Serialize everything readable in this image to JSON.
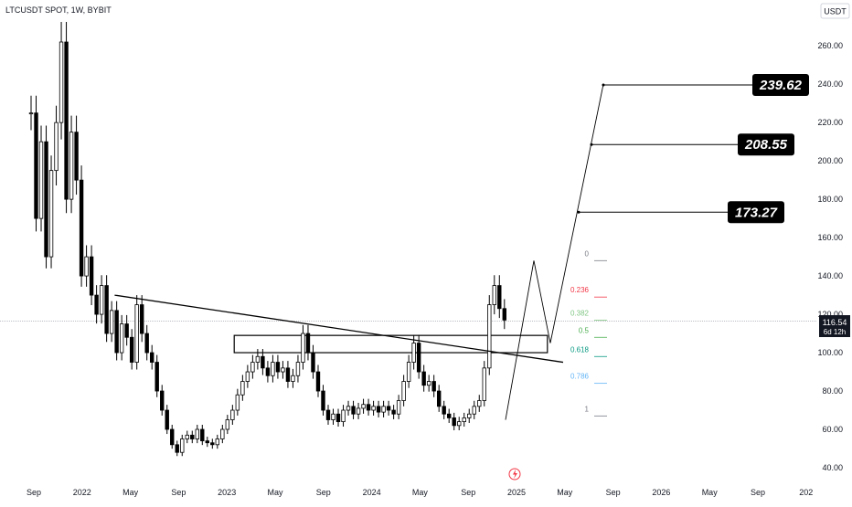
{
  "header": {
    "symbol_title": "LTCUSDT SPOT, 1W, BYBIT",
    "currency_button": "USDT"
  },
  "price_tag": {
    "price": "116.54",
    "countdown": "6d 12h"
  },
  "colors": {
    "bull": "#ffffff",
    "bear": "#000000",
    "wick": "#000000",
    "trendline": "#000000",
    "fib_0": "#787b86",
    "fib_0236": "#f23645",
    "fib_0382": "#81c784",
    "fib_05": "#4caf50",
    "fib_0618": "#089981",
    "fib_0786": "#64b5f6",
    "fib_1": "#787b86",
    "target_box": "#000000",
    "last_price_line": "#9598a1"
  },
  "chart_data": {
    "type": "candlestick",
    "title": "LTCUSDT SPOT, 1W, BYBIT",
    "y_axis": {
      "unit": "USDT",
      "ticks": [
        "40.00",
        "60.00",
        "80.00",
        "100.00",
        "120.00",
        "140.00",
        "160.00",
        "180.00",
        "200.00",
        "220.00",
        "240.00",
        "260.00"
      ],
      "ylim": [
        40,
        262
      ]
    },
    "x_axis": {
      "ticks": [
        "Sep",
        "2022",
        "May",
        "Sep",
        "2023",
        "May",
        "Sep",
        "2024",
        "May",
        "Sep",
        "2025",
        "May",
        "Sep",
        "2026",
        "May",
        "Sep",
        "202"
      ],
      "tick_dates": [
        "2021-09",
        "2022-01",
        "2022-05",
        "2022-09",
        "2023-01",
        "2023-05",
        "2023-09",
        "2024-01",
        "2024-05",
        "2024-09",
        "2025-01",
        "2025-05",
        "2025-09",
        "2026-01",
        "2026-05",
        "2026-09",
        "2027-01"
      ]
    },
    "last_price": 116.54,
    "candle_path_close_estimates": [
      [
        0,
        225
      ],
      [
        2,
        170
      ],
      [
        4,
        210
      ],
      [
        6,
        150
      ],
      [
        8,
        195
      ],
      [
        10,
        220
      ],
      [
        12,
        262
      ],
      [
        14,
        180
      ],
      [
        16,
        215
      ],
      [
        18,
        190
      ],
      [
        20,
        140
      ],
      [
        22,
        150
      ],
      [
        24,
        130
      ],
      [
        26,
        120
      ],
      [
        28,
        135
      ],
      [
        30,
        110
      ],
      [
        32,
        122
      ],
      [
        34,
        100
      ],
      [
        36,
        115
      ],
      [
        38,
        108
      ],
      [
        40,
        95
      ],
      [
        42,
        125
      ],
      [
        44,
        110
      ],
      [
        46,
        100
      ],
      [
        48,
        95
      ],
      [
        50,
        80
      ],
      [
        52,
        70
      ],
      [
        54,
        60
      ],
      [
        56,
        52
      ],
      [
        58,
        48
      ],
      [
        60,
        55
      ],
      [
        62,
        57
      ],
      [
        64,
        55
      ],
      [
        66,
        60
      ],
      [
        68,
        54
      ],
      [
        70,
        53
      ],
      [
        72,
        52
      ],
      [
        74,
        55
      ],
      [
        76,
        60
      ],
      [
        78,
        65
      ],
      [
        80,
        70
      ],
      [
        82,
        78
      ],
      [
        84,
        85
      ],
      [
        86,
        90
      ],
      [
        88,
        95
      ],
      [
        90,
        98
      ],
      [
        92,
        92
      ],
      [
        94,
        88
      ],
      [
        96,
        95
      ],
      [
        98,
        90
      ],
      [
        100,
        92
      ],
      [
        102,
        85
      ],
      [
        104,
        88
      ],
      [
        106,
        95
      ],
      [
        108,
        110
      ],
      [
        110,
        100
      ],
      [
        112,
        90
      ],
      [
        114,
        80
      ],
      [
        116,
        70
      ],
      [
        118,
        65
      ],
      [
        120,
        68
      ],
      [
        122,
        64
      ],
      [
        124,
        70
      ],
      [
        126,
        72
      ],
      [
        128,
        68
      ],
      [
        130,
        71
      ],
      [
        132,
        73
      ],
      [
        134,
        70
      ],
      [
        136,
        72
      ],
      [
        138,
        69
      ],
      [
        140,
        72
      ],
      [
        142,
        70
      ],
      [
        144,
        68
      ],
      [
        146,
        75
      ],
      [
        148,
        85
      ],
      [
        150,
        95
      ],
      [
        152,
        105
      ],
      [
        154,
        90
      ],
      [
        156,
        83
      ],
      [
        158,
        85
      ],
      [
        160,
        80
      ],
      [
        162,
        72
      ],
      [
        164,
        68
      ],
      [
        166,
        66
      ],
      [
        168,
        62
      ],
      [
        170,
        64
      ],
      [
        172,
        66
      ],
      [
        174,
        68
      ],
      [
        176,
        72
      ],
      [
        178,
        75
      ],
      [
        180,
        92
      ],
      [
        182,
        125
      ],
      [
        184,
        135
      ],
      [
        186,
        123
      ],
      [
        188,
        117
      ]
    ],
    "annotations": {
      "descending_trendline": {
        "from": [
          "2022-04",
          130
        ],
        "to": [
          "2025-05",
          95
        ]
      },
      "resistance_zone": {
        "from_date": "2023-01",
        "to_date": "2025-05",
        "top": 109,
        "bottom": 100
      },
      "projection_zigzag": [
        [
          "2024-12",
          65
        ],
        [
          "2025-03",
          148
        ],
        [
          "2025-05",
          105
        ],
        [
          "2025-08",
          240
        ]
      ],
      "targets": [
        {
          "label": "173.27",
          "value": 173.27
        },
        {
          "label": "208.55",
          "value": 208.55
        },
        {
          "label": "239.62",
          "value": 239.62
        }
      ],
      "fibonacci_levels": [
        {
          "label": "0",
          "value": 148
        },
        {
          "label": "0.236",
          "value": 129
        },
        {
          "label": "0.382",
          "value": 117
        },
        {
          "label": "0.5",
          "value": 108
        },
        {
          "label": "0.618",
          "value": 98
        },
        {
          "label": "0.786",
          "value": 84
        },
        {
          "label": "1",
          "value": 67
        }
      ]
    }
  }
}
